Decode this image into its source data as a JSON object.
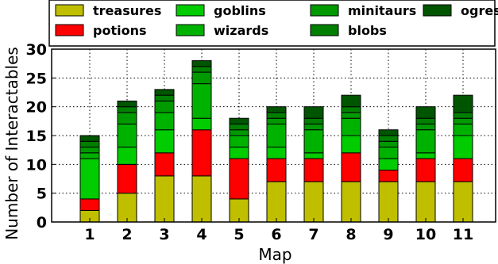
{
  "chart_data": {
    "type": "bar",
    "stacked": true,
    "xlabel": "Map",
    "ylabel": "Number of Interactables",
    "categories": [
      "1",
      "2",
      "3",
      "4",
      "5",
      "6",
      "7",
      "8",
      "9",
      "10",
      "11"
    ],
    "ylim": [
      0,
      30
    ],
    "yticks": [
      0,
      5,
      10,
      15,
      20,
      25,
      30
    ],
    "grid": "on",
    "legend": "top",
    "series": [
      {
        "name": "treasures",
        "color": "#bfbf00",
        "values": [
          2,
          5,
          8,
          8,
          4,
          7,
          7,
          7,
          7,
          7,
          7
        ]
      },
      {
        "name": "potions",
        "color": "#ff0000",
        "values": [
          2,
          5,
          4,
          8,
          7,
          4,
          4,
          5,
          2,
          4,
          4
        ]
      },
      {
        "name": "goblins",
        "color": "#00cc00",
        "values": [
          7,
          3,
          4,
          2,
          2,
          2,
          1,
          3,
          2,
          1,
          4
        ]
      },
      {
        "name": "wizards",
        "color": "#00b200",
        "values": [
          1,
          4,
          3,
          6,
          2,
          4,
          4,
          3,
          2,
          4,
          2
        ]
      },
      {
        "name": "minitaurs",
        "color": "#009900",
        "values": [
          1,
          2,
          2,
          2,
          1,
          1,
          1,
          1,
          1,
          1,
          1
        ]
      },
      {
        "name": "blobs",
        "color": "#007f00",
        "values": [
          1,
          1,
          1,
          1,
          1,
          1,
          1,
          1,
          1,
          1,
          1
        ]
      },
      {
        "name": "ogres",
        "color": "#005500",
        "values": [
          1,
          1,
          1,
          1,
          1,
          1,
          2,
          2,
          1,
          2,
          3
        ]
      }
    ],
    "legend_order": [
      "treasures",
      "goblins",
      "minitaurs",
      "ogres",
      "potions",
      "wizards",
      "blobs"
    ]
  }
}
